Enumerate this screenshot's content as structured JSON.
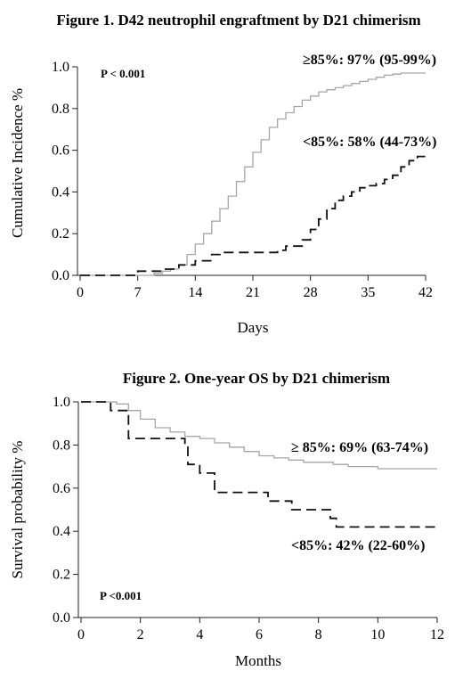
{
  "chart_data": [
    {
      "type": "line",
      "title": "Figure 1. D42 neutrophil engraftment by D21 chimerism",
      "xlabel": "Days",
      "ylabel": "Cumulative Incidence %",
      "xlim": [
        0,
        42
      ],
      "ylim": [
        0,
        1.0
      ],
      "xticks": [
        "0",
        "7",
        "14",
        "21",
        "28",
        "35",
        "42"
      ],
      "yticks": [
        "0.0",
        "0.2",
        "0.4",
        "0.6",
        "0.8",
        "1.0"
      ],
      "grid": false,
      "pvalue": "P < 0.001",
      "annotations": [
        "≥85%: 97% (95-99%)",
        "<85%: 58% (44-73%)"
      ],
      "series": [
        {
          "style": "solid",
          "color": "#a6a6a6",
          "x": [
            0,
            9,
            10,
            11,
            12,
            13,
            14,
            15,
            16,
            17,
            18,
            19,
            20,
            21,
            22,
            23,
            24,
            25,
            26,
            27,
            28,
            29,
            30,
            31,
            32,
            33,
            34,
            35,
            36,
            37,
            38,
            39,
            40,
            41,
            42
          ],
          "y": [
            0,
            0.01,
            0.02,
            0.03,
            0.05,
            0.1,
            0.15,
            0.2,
            0.26,
            0.32,
            0.38,
            0.45,
            0.52,
            0.59,
            0.65,
            0.71,
            0.75,
            0.78,
            0.81,
            0.84,
            0.86,
            0.88,
            0.89,
            0.9,
            0.91,
            0.92,
            0.93,
            0.94,
            0.95,
            0.96,
            0.965,
            0.97,
            0.97,
            0.97,
            0.97
          ]
        },
        {
          "style": "dashed",
          "color": "#111111",
          "x": [
            0,
            7,
            10,
            12,
            14,
            16,
            17,
            24,
            25,
            27,
            28,
            29,
            30,
            31,
            32,
            33,
            34,
            35,
            36,
            37,
            38,
            39,
            40,
            41,
            42
          ],
          "y": [
            0,
            0.02,
            0.03,
            0.05,
            0.07,
            0.1,
            0.11,
            0.12,
            0.14,
            0.17,
            0.22,
            0.27,
            0.32,
            0.36,
            0.38,
            0.4,
            0.42,
            0.43,
            0.44,
            0.46,
            0.48,
            0.52,
            0.55,
            0.57,
            0.58
          ]
        }
      ]
    },
    {
      "type": "line",
      "title": "Figure 2. One-year OS by D21 chimerism",
      "xlabel": "Months",
      "ylabel": "Survival probability %",
      "xlim": [
        0,
        12
      ],
      "ylim": [
        0,
        1.0
      ],
      "xticks": [
        "0",
        "2",
        "4",
        "6",
        "8",
        "10",
        "12"
      ],
      "yticks": [
        "0.0",
        "0.2",
        "0.4",
        "0.6",
        "0.8",
        "1.0"
      ],
      "grid": false,
      "pvalue": "P <0.001",
      "annotations": [
        "≥ 85%: 69% (63-74%)",
        "<85%: 42% (22-60%)"
      ],
      "series": [
        {
          "style": "solid",
          "color": "#a6a6a6",
          "x": [
            0,
            1.2,
            1.6,
            2.0,
            2.5,
            3.0,
            3.5,
            4.0,
            4.5,
            5.0,
            5.5,
            6.0,
            6.5,
            7.0,
            7.5,
            8.0,
            8.5,
            9.0,
            9.5,
            10.0,
            11.0,
            12.0
          ],
          "y": [
            1.0,
            0.99,
            0.96,
            0.92,
            0.88,
            0.86,
            0.84,
            0.83,
            0.81,
            0.79,
            0.77,
            0.75,
            0.74,
            0.73,
            0.72,
            0.72,
            0.71,
            0.7,
            0.7,
            0.69,
            0.69,
            0.69
          ]
        },
        {
          "style": "dashed",
          "color": "#111111",
          "x": [
            0,
            1.0,
            1.6,
            3.5,
            3.6,
            4.0,
            4.5,
            6.3,
            7.1,
            8.4,
            8.6,
            12.0
          ],
          "y": [
            1.0,
            0.96,
            0.83,
            0.79,
            0.71,
            0.67,
            0.58,
            0.54,
            0.5,
            0.46,
            0.42,
            0.42
          ]
        }
      ]
    }
  ]
}
